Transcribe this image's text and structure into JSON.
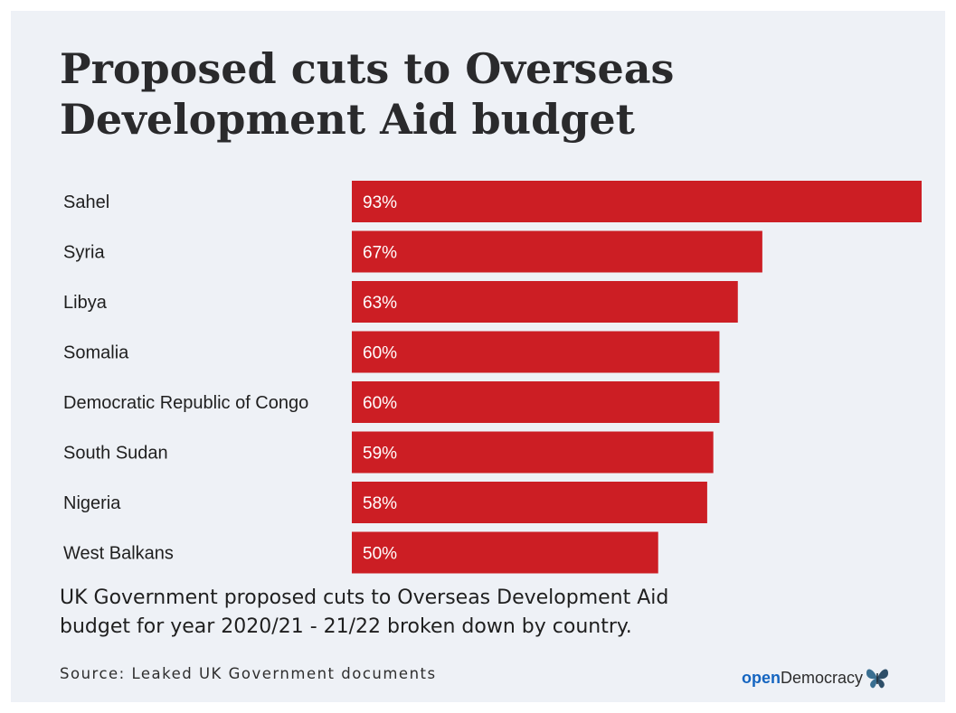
{
  "title": {
    "line1": "Proposed cuts to Overseas",
    "line2": "Development Aid budget"
  },
  "chart_data": {
    "type": "bar",
    "orientation": "horizontal",
    "categories": [
      "Sahel",
      "Syria",
      "Libya",
      "Somalia",
      "Democratic Republic of Congo",
      "South Sudan",
      "Nigeria",
      "West Balkans"
    ],
    "values": [
      93,
      67,
      63,
      60,
      60,
      59,
      58,
      50
    ],
    "value_labels": [
      "93%",
      "67%",
      "63%",
      "60%",
      "60%",
      "59%",
      "58%",
      "50%"
    ],
    "unit": "%",
    "xlim": [
      0,
      93
    ],
    "bar_color": "#cc1e24",
    "grid": false,
    "legend": "none"
  },
  "caption": {
    "line1": "UK Government proposed cuts to Overseas Development Aid",
    "line2": "budget for year 2020/21 - 21/22 broken down by country."
  },
  "source": "Source: Leaked UK Government documents",
  "logo": {
    "part1": "open",
    "part2": "Democracy",
    "icon": "butterfly-icon"
  },
  "colors": {
    "background": "#eef1f6",
    "bar": "#cc1e24",
    "logo_accent": "#1565c0"
  }
}
